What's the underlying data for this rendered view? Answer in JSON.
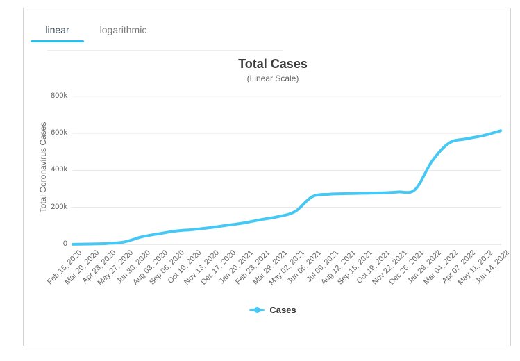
{
  "tabs": {
    "linear": "linear",
    "logarithmic": "logarithmic"
  },
  "chart": {
    "title": "Total Cases",
    "subtitle": "(Linear Scale)",
    "y_axis_title": "Total Coronavirus Cases",
    "legend_label": "Cases"
  },
  "colors": {
    "line": "#45c8f3",
    "tab_underline": "#2cbeeb",
    "grid": "#e6e6e6",
    "axis_line": "#d5d5d5",
    "muted_text": "#666666",
    "card_border": "#d4d4d4"
  },
  "chart_data": {
    "type": "line",
    "title": "Total Cases",
    "subtitle": "(Linear Scale)",
    "xlabel": "",
    "ylabel": "Total Coronavirus Cases",
    "legend_position": "bottom",
    "grid": "horizontal",
    "ylim": [
      0,
      800000
    ],
    "y_ticks": [
      "0",
      "200k",
      "400k",
      "600k",
      "800k"
    ],
    "y_tick_values": [
      0,
      200000,
      400000,
      600000,
      800000
    ],
    "categories": [
      "Feb 15, 2020",
      "Mar 20, 2020",
      "Apr 23, 2020",
      "May 27, 2020",
      "Jun 30, 2020",
      "Aug 03, 2020",
      "Sep 06, 2020",
      "Oct 10, 2020",
      "Nov 13, 2020",
      "Dec 17, 2020",
      "Jan 20, 2021",
      "Feb 23, 2021",
      "Mar 29, 2021",
      "May 02, 2021",
      "Jun 05, 2021",
      "Jul 09, 2021",
      "Aug 12, 2021",
      "Sep 15, 2021",
      "Oct 19, 2021",
      "Nov 22, 2021",
      "Dec 26, 2021",
      "Jan 29, 2022",
      "Mar 04, 2022",
      "Apr 07, 2022",
      "May 11, 2022",
      "Jun 14, 2022"
    ],
    "series": [
      {
        "name": "Cases",
        "color": "#45c8f3",
        "values": [
          500,
          2000,
          5000,
          13000,
          40000,
          57000,
          72000,
          80000,
          90000,
          103000,
          116000,
          134000,
          150000,
          178000,
          258000,
          271000,
          274000,
          276000,
          278000,
          283000,
          296000,
          450000,
          548000,
          570000,
          588000,
          614000
        ]
      }
    ]
  }
}
